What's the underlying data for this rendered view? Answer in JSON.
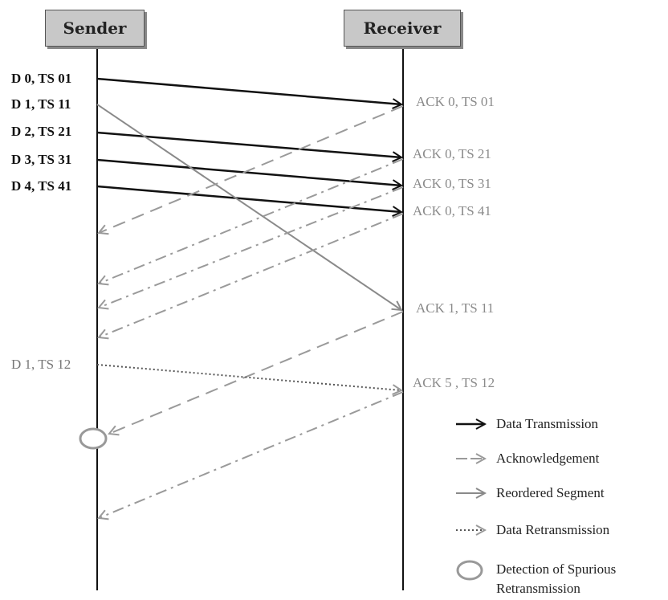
{
  "nodes": {
    "sender": "Sender",
    "receiver": "Receiver"
  },
  "sender_labels": [
    "D 0, TS 01",
    "D 1, TS 11",
    "D 2, TS 21",
    "D 3, TS 31",
    "D 4, TS 41",
    "D 1, TS 12"
  ],
  "receiver_labels": [
    "ACK 0, TS 01",
    "ACK 0, TS 21",
    "ACK 0, TS 31",
    "ACK 0, TS 41",
    "ACK 1, TS 11",
    "ACK 5 , TS 12"
  ],
  "legend": {
    "data_transmission": "Data Transmission",
    "acknowledgement": "Acknowledgement",
    "reordered_segment": "Reordered Segment",
    "data_retransmission": "Data Retransmission",
    "spurious_detection_line1": "Detection of Spurious",
    "spurious_detection_line2": "Retransmission"
  },
  "colors": {
    "data": "#111111",
    "ack": "#9a9a9a",
    "reordered": "#8a8a8a",
    "retransmission": "#555555"
  }
}
